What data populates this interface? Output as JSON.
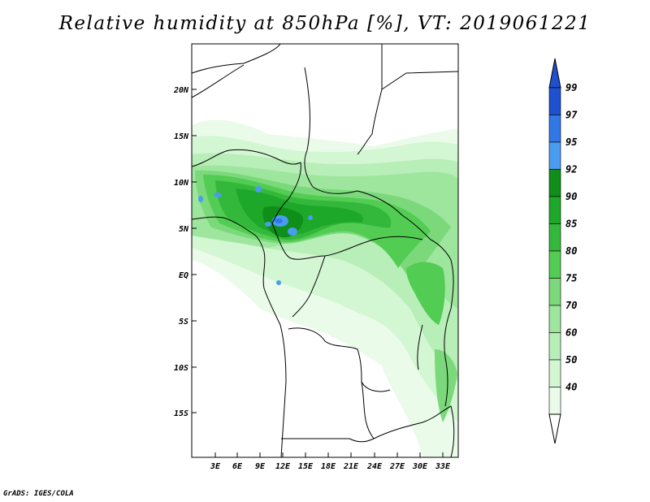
{
  "title": "Relative humidity at 850hPa [%], VT: 2019061221",
  "footer": "GrADS: IGES/COLA",
  "map": {
    "lat_labels": [
      "20N",
      "15N",
      "10N",
      "5N",
      "EQ",
      "5S",
      "10S",
      "15S"
    ],
    "lon_labels": [
      "3E",
      "6E",
      "9E",
      "12E",
      "15E",
      "18E",
      "21E",
      "24E",
      "27E",
      "30E",
      "33E"
    ],
    "lon_range": [
      0,
      35
    ],
    "lat_range": [
      -20,
      24
    ]
  },
  "colorbar": {
    "levels": [
      "99",
      "97",
      "95",
      "92",
      "90",
      "85",
      "80",
      "75",
      "70",
      "60",
      "50",
      "40"
    ],
    "colors": [
      "#1f50d0",
      "#2f78e6",
      "#4a9cf0",
      "#0f8f1a",
      "#1ea82a",
      "#34b83c",
      "#52cc52",
      "#7bd97b",
      "#9ee69e",
      "#b8eeb8",
      "#d3f6d3",
      "#eafbea"
    ],
    "over_color": "#1f50d0",
    "under_color": "#ffffff"
  }
}
